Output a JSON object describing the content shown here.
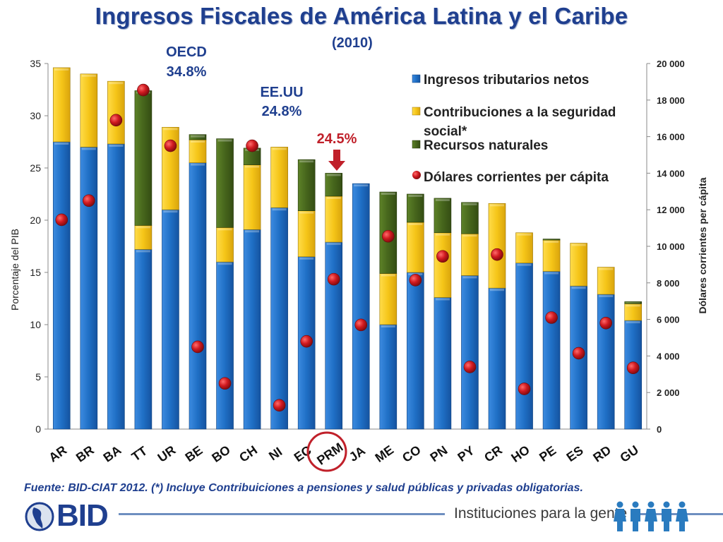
{
  "header": {
    "title": "Ingresos Fiscales de América Latina y el Caribe",
    "subtitle": "(2010)"
  },
  "annotations": [
    {
      "id": "oecd",
      "line1": "OECD",
      "line2": "34.8%"
    },
    {
      "id": "eeuu",
      "line1": "EE.UU",
      "line2": "24.8%"
    },
    {
      "id": "prm",
      "line1": "24.5%"
    }
  ],
  "footer": {
    "source": "Fuente: BID-CIAT 2012. (*) Incluye Contribuiciones a  pensiones y salud públicas y privadas obligatorias.",
    "logo_text": "BID",
    "tagline": "Instituciones para la gente"
  },
  "colors": {
    "tax": "#1f6fc5",
    "social": "#f5c518",
    "natural": "#4a6a1e",
    "dot": "#c8161d",
    "title": "#1f3f8f",
    "highlight_circle": "#c0202a"
  },
  "chart_data": {
    "type": "bar",
    "stacked": true,
    "title": "Ingresos Fiscales de América Latina y el Caribe",
    "subtitle": "(2010)",
    "ylabel": "Porcentaje del PIB",
    "y2label": "Dólares corrientes per cápita",
    "ylim": [
      0,
      35
    ],
    "y2lim": [
      0,
      20000
    ],
    "yticks": [
      "0",
      "5",
      "10",
      "15",
      "20",
      "25",
      "30",
      "35"
    ],
    "y2ticks": [
      "0",
      "2 000",
      "4 000",
      "6 000",
      "8 000",
      "10 000",
      "12 000",
      "14 000",
      "16 000",
      "18 000",
      "20 000"
    ],
    "categories": [
      "AR",
      "BR",
      "BA",
      "TT",
      "UR",
      "BE",
      "BO",
      "CH",
      "NI",
      "EC",
      "PRM",
      "JA",
      "ME",
      "CO",
      "PN",
      "PY",
      "CR",
      "HO",
      "PE",
      "ES",
      "RD",
      "GU"
    ],
    "highlighted_category": "PRM",
    "series": [
      {
        "name": "Ingresos tributarios netos",
        "kind": "bar",
        "values": [
          27.5,
          27.0,
          27.3,
          17.2,
          21.0,
          25.5,
          16.0,
          19.1,
          21.2,
          16.5,
          17.9,
          23.5,
          10.0,
          15.0,
          12.6,
          14.7,
          13.5,
          15.9,
          15.1,
          13.7,
          12.9,
          10.4
        ]
      },
      {
        "name": "Contribuciones a la seguridad social*",
        "kind": "bar",
        "values": [
          7.1,
          7.0,
          6.0,
          2.3,
          7.9,
          2.2,
          3.3,
          6.2,
          5.8,
          4.4,
          4.4,
          0.0,
          4.9,
          4.8,
          6.2,
          4.0,
          8.1,
          2.9,
          3.0,
          4.1,
          2.6,
          1.6
        ]
      },
      {
        "name": "Recursos naturales",
        "kind": "bar",
        "values": [
          0.0,
          0.0,
          0.0,
          12.9,
          0.0,
          0.5,
          8.5,
          1.6,
          0.0,
          4.9,
          2.2,
          0.0,
          7.8,
          2.7,
          3.3,
          3.0,
          0.0,
          0.0,
          0.1,
          0.0,
          0.0,
          0.2
        ]
      },
      {
        "name": "Dólares corrientes per cápita",
        "kind": "scatter",
        "axis": "right",
        "values": [
          11450,
          12500,
          16900,
          18550,
          15500,
          4500,
          2500,
          15500,
          1300,
          4800,
          8200,
          5700,
          10550,
          8150,
          9450,
          3400,
          9550,
          2200,
          6100,
          4150,
          5800,
          3350
        ]
      }
    ],
    "legend": {
      "placement": "top-right"
    },
    "grid": false
  }
}
